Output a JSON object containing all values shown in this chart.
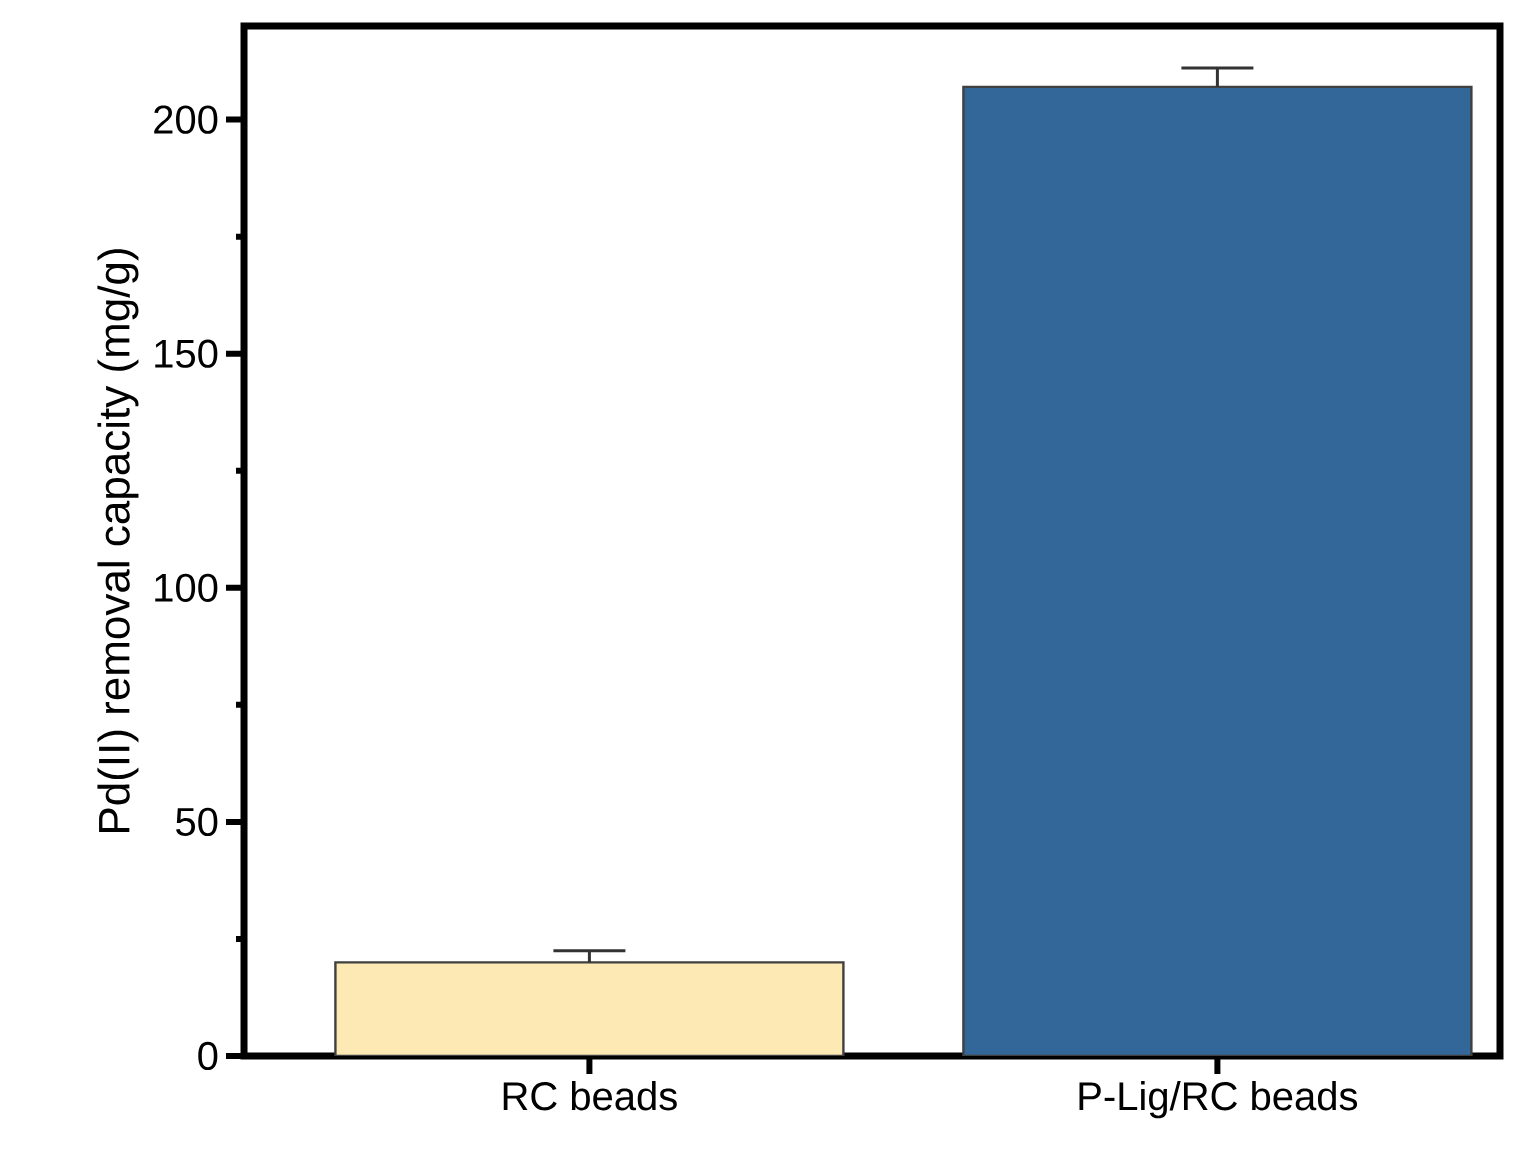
{
  "chart_data": {
    "type": "bar",
    "ylabel": "Pd(II) removal capacity (mg/g)",
    "categories": [
      "RC beads",
      "P-Lig/RC beads"
    ],
    "values": [
      20,
      207
    ],
    "errors": [
      2.5,
      4
    ],
    "colors": [
      "#fde9b4",
      "#336699"
    ],
    "ylim": [
      0,
      220
    ],
    "yticks": [
      0,
      50,
      100,
      150,
      200
    ],
    "grid": false
  }
}
